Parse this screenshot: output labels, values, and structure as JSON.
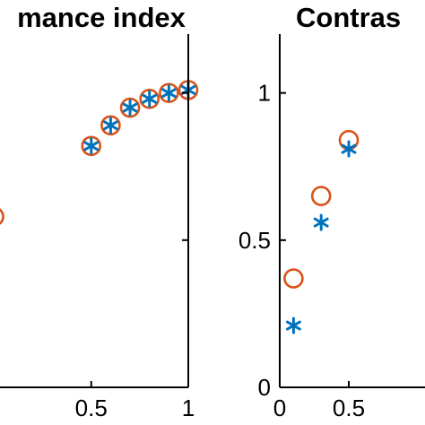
{
  "chart_data": [
    {
      "type": "scatter",
      "title": "mance index",
      "xlim": [
        0.03,
        1.0
      ],
      "ylim": [
        0.0,
        1.2
      ],
      "x_ticks": [
        {
          "value": 0.5,
          "label": "0.5"
        },
        {
          "value": 1.0,
          "label": "1"
        }
      ],
      "y_ticks": [
        {
          "value": 0.0,
          "label": ""
        },
        {
          "value": 0.5,
          "label": ""
        },
        {
          "value": 1.0,
          "label": ""
        }
      ],
      "grid": false,
      "series": [
        {
          "marker": "circle",
          "color": "#d95319",
          "points": [
            {
              "x": 0.0,
              "y": 0.58
            },
            {
              "x": 0.5,
              "y": 0.82
            },
            {
              "x": 0.6,
              "y": 0.89
            },
            {
              "x": 0.7,
              "y": 0.95
            },
            {
              "x": 0.8,
              "y": 0.98
            },
            {
              "x": 0.9,
              "y": 1.0
            },
            {
              "x": 1.0,
              "y": 1.01
            }
          ]
        },
        {
          "marker": "asterisk",
          "color": "#0072bd",
          "points": [
            {
              "x": 0.5,
              "y": 0.82
            },
            {
              "x": 0.6,
              "y": 0.89
            },
            {
              "x": 0.7,
              "y": 0.95
            },
            {
              "x": 0.8,
              "y": 0.98
            },
            {
              "x": 0.9,
              "y": 1.0
            },
            {
              "x": 1.0,
              "y": 1.01
            }
          ]
        }
      ]
    },
    {
      "type": "scatter",
      "title": "Contras",
      "xlim": [
        0.0,
        1.0
      ],
      "ylim": [
        0.0,
        1.2
      ],
      "x_ticks": [
        {
          "value": 0.0,
          "label": "0"
        },
        {
          "value": 0.5,
          "label": "0.5"
        }
      ],
      "y_ticks": [
        {
          "value": 0.0,
          "label": "0"
        },
        {
          "value": 0.5,
          "label": "0.5"
        },
        {
          "value": 1.0,
          "label": "1"
        }
      ],
      "grid": false,
      "series": [
        {
          "marker": "circle",
          "color": "#d95319",
          "points": [
            {
              "x": 0.1,
              "y": 0.37
            },
            {
              "x": 0.3,
              "y": 0.65
            },
            {
              "x": 0.5,
              "y": 0.84
            }
          ]
        },
        {
          "marker": "asterisk",
          "color": "#0072bd",
          "points": [
            {
              "x": 0.1,
              "y": 0.21
            },
            {
              "x": 0.3,
              "y": 0.56
            },
            {
              "x": 0.5,
              "y": 0.81
            }
          ]
        }
      ]
    }
  ]
}
